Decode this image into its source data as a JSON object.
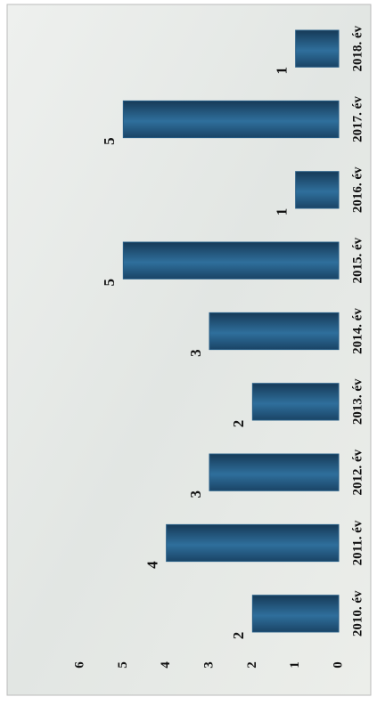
{
  "chart_data": {
    "type": "bar",
    "categories": [
      "2010. év",
      "2011. év",
      "2012. év",
      "2013. év",
      "2014. év",
      "2015. év",
      "2016. év",
      "2017. év",
      "2018. év"
    ],
    "values": [
      2,
      4,
      3,
      2,
      3,
      5,
      1,
      5,
      1
    ],
    "color": "#255c85",
    "ylim": [
      0,
      6
    ],
    "yticks": [
      0,
      1,
      2,
      3,
      4,
      5,
      6
    ]
  }
}
